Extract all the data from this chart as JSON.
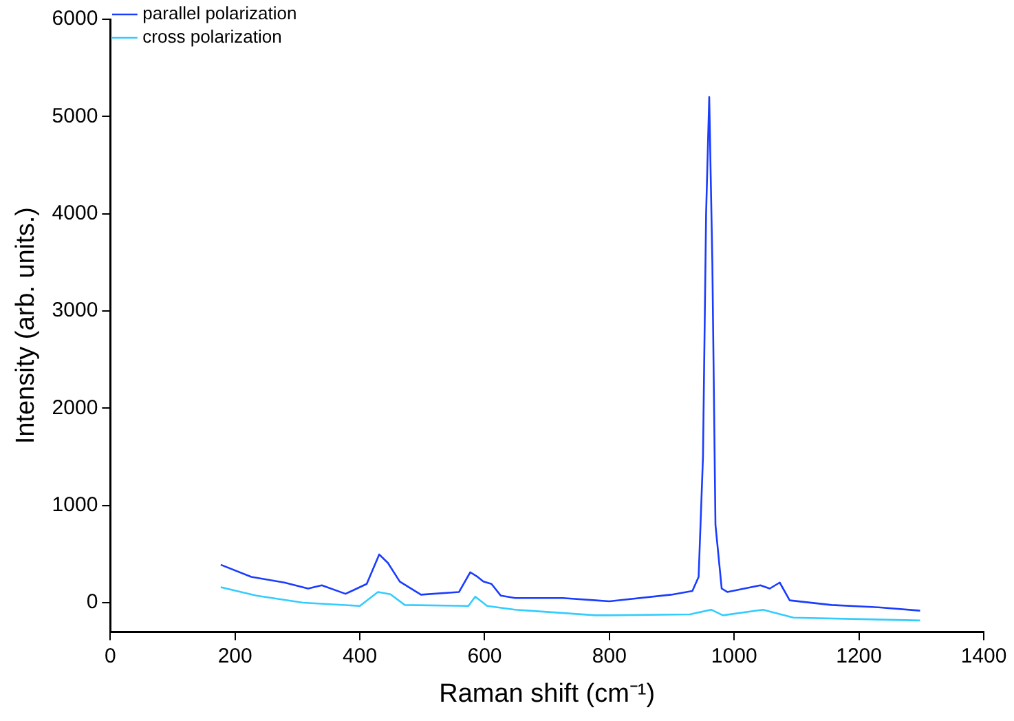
{
  "chart_data": {
    "type": "line",
    "xlabel": "Raman shift (cm⁻¹)",
    "ylabel": "Intensity (arb. units.)",
    "xlim": [
      0,
      1400
    ],
    "xticks": [
      0,
      200,
      400,
      600,
      800,
      1000,
      1200,
      1400
    ],
    "ylim": [
      -300,
      6000
    ],
    "yticks": [
      0,
      1000,
      2000,
      3000,
      4000,
      5000,
      6000
    ],
    "grid": false,
    "legend": "top left",
    "marker": "none",
    "line_style": "solid",
    "series": [
      {
        "name": "parallel polarization",
        "color": "#1a3cff",
        "x": [
          177,
          226,
          279,
          317,
          339,
          377,
          411,
          431,
          445,
          464,
          498,
          559,
          577,
          589,
          598,
          611,
          626,
          649,
          725,
          778,
          800,
          899,
          933,
          943,
          950,
          955,
          960,
          965,
          970,
          980,
          989,
          1042,
          1057,
          1073,
          1089,
          1156,
          1231,
          1298
        ],
        "values": [
          390,
          265,
          207,
          145,
          178,
          91,
          193,
          496,
          409,
          217,
          82,
          110,
          313,
          264,
          217,
          193,
          72,
          48,
          48,
          24,
          14,
          82,
          120,
          265,
          1500,
          4000,
          5200,
          3500,
          800,
          145,
          110,
          178,
          145,
          207,
          24,
          -24,
          -48,
          -82
        ]
      },
      {
        "name": "cross polarization",
        "color": "#33ccff",
        "x": [
          177,
          234,
          309,
          400,
          429,
          449,
          472,
          574,
          585,
          604,
          649,
          778,
          800,
          929,
          963,
          982,
          1046,
          1095,
          1298
        ],
        "values": [
          159,
          72,
          0,
          -34,
          110,
          87,
          -24,
          -34,
          62,
          -34,
          -72,
          -130,
          -130,
          -120,
          -72,
          -130,
          -72,
          -154,
          -183
        ]
      }
    ]
  }
}
